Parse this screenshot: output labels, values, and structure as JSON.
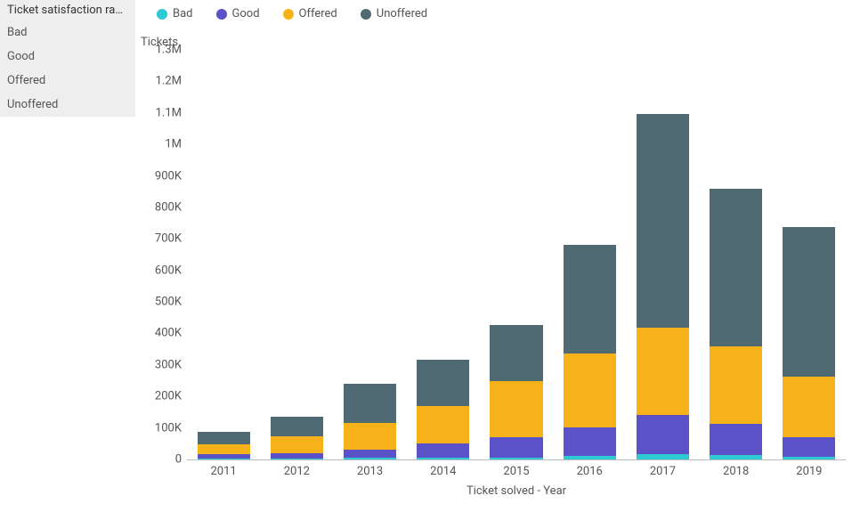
{
  "side_panel": {
    "title": "Ticket satisfaction ra…",
    "items": [
      "Bad",
      "Good",
      "Offered",
      "Unoffered"
    ]
  },
  "legend": {
    "items": [
      {
        "label": "Bad",
        "color": "#2ecad4"
      },
      {
        "label": "Good",
        "color": "#5a52c6"
      },
      {
        "label": "Offered",
        "color": "#f7b219"
      },
      {
        "label": "Unoffered",
        "color": "#4f6a73"
      }
    ]
  },
  "chart": {
    "type": "stacked-bar",
    "y_axis": {
      "title": "Tickets",
      "min": 0,
      "max": 1300000,
      "tick_step": 100000,
      "tick_labels": [
        "0",
        "100K",
        "200K",
        "300K",
        "400K",
        "500K",
        "600K",
        "700K",
        "800K",
        "900K",
        "1M",
        "1.1M",
        "1.2M",
        "1.3M"
      ],
      "label_fontsize": 13,
      "gridline_color": "transparent",
      "baseline_color": "#bdbdbd"
    },
    "x_axis": {
      "title": "Ticket solved - Year",
      "label_fontsize": 13
    },
    "series_keys": [
      "Bad",
      "Good",
      "Offered",
      "Unoffered"
    ],
    "colors": {
      "Bad": "#2ecad4",
      "Good": "#5a52c6",
      "Offered": "#f7b219",
      "Unoffered": "#4f6a73"
    },
    "categories": [
      "2011",
      "2012",
      "2013",
      "2014",
      "2015",
      "2016",
      "2017",
      "2018",
      "2019"
    ],
    "data": {
      "2011": {
        "Bad": 3000,
        "Good": 15000,
        "Offered": 30000,
        "Unoffered": 40000
      },
      "2012": {
        "Bad": 3000,
        "Good": 17000,
        "Offered": 55000,
        "Unoffered": 60000
      },
      "2013": {
        "Bad": 5000,
        "Good": 25000,
        "Offered": 85000,
        "Unoffered": 125000
      },
      "2014": {
        "Bad": 5000,
        "Good": 45000,
        "Offered": 120000,
        "Unoffered": 148000
      },
      "2015": {
        "Bad": 5000,
        "Good": 65000,
        "Offered": 180000,
        "Unoffered": 176000
      },
      "2016": {
        "Bad": 10000,
        "Good": 92000,
        "Offered": 233000,
        "Unoffered": 345000
      },
      "2017": {
        "Bad": 18000,
        "Good": 122000,
        "Offered": 278000,
        "Unoffered": 680000
      },
      "2018": {
        "Bad": 15000,
        "Good": 97000,
        "Offered": 248000,
        "Unoffered": 500000
      },
      "2019": {
        "Bad": 8000,
        "Good": 62000,
        "Offered": 192000,
        "Unoffered": 475000
      }
    },
    "bar_width_ratio": 0.72,
    "background_color": "#ffffff"
  }
}
